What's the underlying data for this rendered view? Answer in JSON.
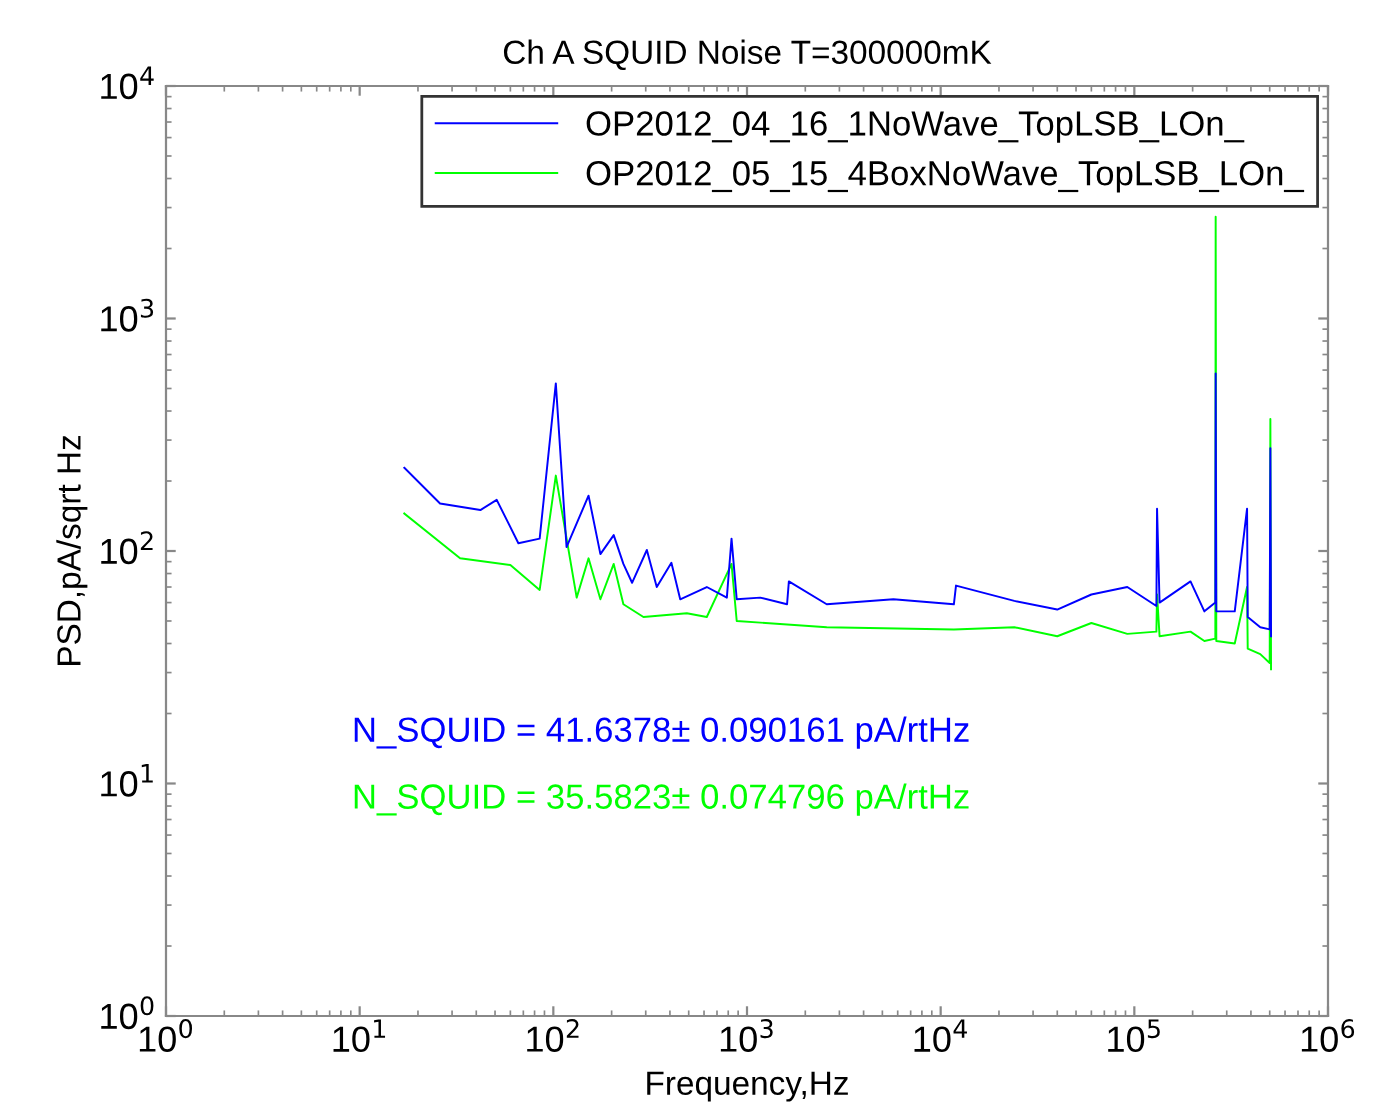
{
  "chart_data": {
    "type": "line",
    "title": "Ch A SQUID Noise T=300000mK",
    "xlabel": "Frequency,Hz",
    "ylabel": "PSD,pA/sqrt Hz",
    "log": "xy",
    "xlim": [
      1,
      1000000
    ],
    "ylim": [
      1,
      10000
    ],
    "xticks": [
      {
        "value": 1,
        "label": "10$^{0}$"
      },
      {
        "value": 10,
        "label": "10$^{1}$"
      },
      {
        "value": 100,
        "label": "10$^{2}$"
      },
      {
        "value": 1000,
        "label": "10$^{3}$"
      },
      {
        "value": 10000,
        "label": "10$^{4}$"
      },
      {
        "value": 100000,
        "label": "10$^{5}$"
      },
      {
        "value": 1000000,
        "label": "10$^{6}$"
      }
    ],
    "yticks": [
      {
        "value": 1,
        "label": "10$^{0}$"
      },
      {
        "value": 10,
        "label": "10$^{1}$"
      },
      {
        "value": 100,
        "label": "10$^{2}$"
      },
      {
        "value": 1000,
        "label": "10$^{3}$"
      },
      {
        "value": 10000,
        "label": "10$^{4}$"
      }
    ],
    "grid": false,
    "legend": "top right",
    "line_style": "solid",
    "marker": "none",
    "annotations": [
      "N_SQUID = 41.6378± 0.090161 pA/rtHz",
      "N_SQUID = 35.5823± 0.074796 pA/rtHz"
    ],
    "series": [
      {
        "name": "OP2012_04_16_1NoWave_TopLSB_LOn_",
        "color": "#0000ff",
        "x": [
          17,
          26,
          42,
          51,
          66,
          85,
          103,
          117,
          152,
          175,
          205,
          230,
          255,
          304,
          342,
          407,
          452,
          620,
          787,
          832,
          885,
          1170,
          1610,
          1645,
          2580,
          5700,
          11700,
          12000,
          24000,
          40000,
          60000,
          92000,
          130000,
          131000,
          135000,
          195000,
          230000,
          262000,
          263000,
          265000,
          330000,
          382000,
          385000,
          447000,
          500000,
          504000,
          508000
        ],
        "values": [
          228,
          160,
          150,
          166,
          108,
          113,
          526,
          104,
          173,
          97,
          117,
          88,
          73,
          101,
          70,
          89,
          62,
          70,
          63,
          113,
          62,
          63,
          59,
          74,
          59,
          62,
          59,
          71,
          61,
          56,
          65,
          70,
          58,
          152,
          60,
          74,
          55,
          60,
          580,
          55,
          55,
          152,
          52,
          47,
          46,
          277,
          43
        ]
      },
      {
        "name": "OP2012_05_15_4BoxNoWave_TopLSB_LOn_",
        "color": "#00ff00",
        "x": [
          17,
          33,
          60,
          85,
          103,
          132,
          152,
          175,
          205,
          230,
          292,
          489,
          620,
          832,
          885,
          2580,
          11700,
          24000,
          40000,
          60000,
          92000,
          130000,
          131000,
          135000,
          195000,
          230000,
          262000,
          263000,
          265000,
          330000,
          382000,
          385000,
          447000,
          500000,
          504000,
          508000
        ],
        "values": [
          145,
          93,
          87,
          68,
          211,
          63,
          93,
          62,
          88,
          59,
          52,
          54,
          52,
          88,
          50,
          47,
          46,
          47,
          43,
          49,
          44,
          45,
          65,
          43,
          45,
          41,
          42,
          2740,
          41,
          40,
          70,
          38,
          36,
          33,
          370,
          31
        ]
      }
    ]
  }
}
